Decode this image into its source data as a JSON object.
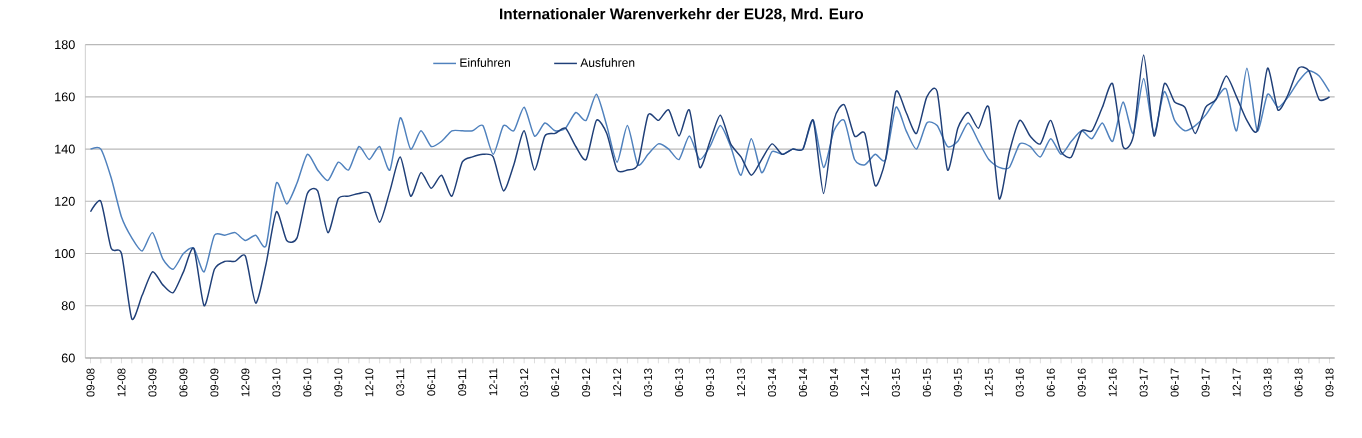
{
  "chart_data": {
    "type": "line",
    "title": "Internationaler Warenverkehr der EU28, Mrd. Euro",
    "categories": [
      "09-08",
      null,
      null,
      "12-08",
      null,
      null,
      "03-09",
      null,
      null,
      "06-09",
      null,
      null,
      "09-09",
      null,
      null,
      "12-09",
      null,
      null,
      "03-10",
      null,
      null,
      "06-10",
      null,
      null,
      "09-10",
      null,
      null,
      "12-10",
      null,
      null,
      "03-11",
      null,
      null,
      "06-11",
      null,
      null,
      "09-11",
      null,
      null,
      "12-11",
      null,
      null,
      "03-12",
      null,
      null,
      "06-12",
      null,
      null,
      "09-12",
      null,
      null,
      "12-12",
      null,
      null,
      "03-13",
      null,
      null,
      "06-13",
      null,
      null,
      "09-13",
      null,
      null,
      "12-13",
      null,
      null,
      "03-14",
      null,
      null,
      "06-14",
      null,
      null,
      "09-14",
      null,
      null,
      "12-14",
      null,
      null,
      "03-15",
      null,
      null,
      "06-15",
      null,
      null,
      "09-15",
      null,
      null,
      "12-15",
      null,
      null,
      "03-16",
      null,
      null,
      "06-16",
      null,
      null,
      "09-16",
      null,
      null,
      "12-16",
      null,
      null,
      "03-17",
      null,
      null,
      "06-17",
      null,
      null,
      "09-17",
      null,
      null,
      "12-17",
      null,
      null,
      "03-18",
      null,
      null,
      "06-18",
      null,
      null,
      "09-18"
    ],
    "series": [
      {
        "name": "Einfuhren",
        "color": "#4f81bd",
        "values": [
          140,
          140,
          129,
          114,
          106,
          101,
          108,
          98,
          94,
          100,
          102,
          93,
          107,
          107,
          108,
          105,
          107,
          103,
          127,
          119,
          127,
          138,
          132,
          128,
          135,
          132,
          141,
          136,
          141,
          132,
          152,
          140,
          147,
          141,
          143,
          147,
          147,
          147,
          149,
          138,
          149,
          147,
          156,
          145,
          150,
          147,
          148,
          154,
          151,
          161,
          149,
          135,
          149,
          134,
          138,
          142,
          140,
          136,
          145,
          136,
          141,
          149,
          141,
          130,
          144,
          131,
          139,
          138,
          140,
          140,
          151,
          133,
          147,
          151,
          136,
          134,
          138,
          136,
          156,
          147,
          140,
          150,
          149,
          141,
          143,
          150,
          143,
          136,
          133,
          133,
          142,
          141,
          137,
          144,
          138,
          143,
          147,
          144,
          150,
          143,
          158,
          146,
          167,
          146,
          162,
          151,
          147,
          149,
          153,
          159,
          163,
          147,
          171,
          147,
          161,
          156,
          160,
          166,
          170,
          168,
          162
        ]
      },
      {
        "name": "Ausfuhren",
        "color": "#1f3f78",
        "values": [
          116,
          120,
          102,
          100,
          75,
          84,
          93,
          88,
          85,
          93,
          102,
          80,
          94,
          97,
          97,
          99,
          81,
          96,
          116,
          105,
          106,
          123,
          124,
          108,
          121,
          122,
          123,
          123,
          112,
          124,
          137,
          122,
          131,
          125,
          130,
          122,
          135,
          137,
          138,
          137,
          124,
          134,
          147,
          132,
          145,
          146,
          148,
          141,
          136,
          151,
          146,
          132,
          132,
          134,
          153,
          151,
          155,
          145,
          155,
          133,
          143,
          153,
          142,
          137,
          130,
          136,
          142,
          138,
          140,
          140,
          151,
          123,
          151,
          157,
          145,
          146,
          126,
          136,
          162,
          154,
          146,
          160,
          162,
          132,
          148,
          154,
          148,
          156,
          121,
          139,
          151,
          145,
          142,
          151,
          139,
          137,
          147,
          147,
          156,
          165,
          141,
          145,
          176,
          145,
          165,
          158,
          156,
          146,
          156,
          159,
          168,
          160,
          151,
          147,
          171,
          155,
          161,
          171,
          170,
          159,
          160
        ]
      }
    ],
    "ylim": [
      60,
      180
    ],
    "yticks": [
      60,
      80,
      100,
      120,
      140,
      160,
      180
    ],
    "grid": "y",
    "legend": "top",
    "marker": "none",
    "line_style": "solid"
  }
}
